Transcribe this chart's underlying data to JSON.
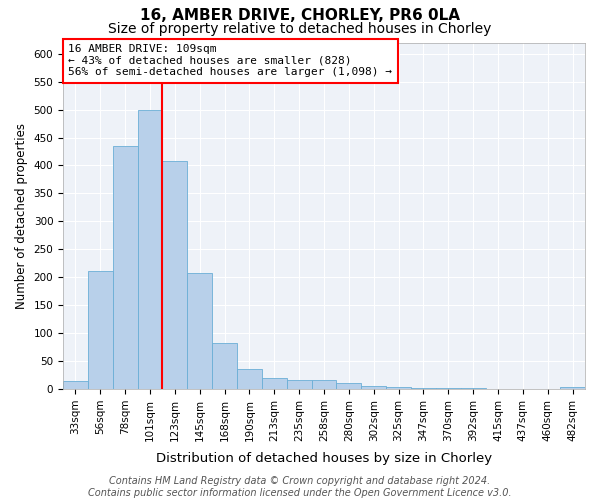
{
  "title1": "16, AMBER DRIVE, CHORLEY, PR6 0LA",
  "title2": "Size of property relative to detached houses in Chorley",
  "xlabel": "Distribution of detached houses by size in Chorley",
  "ylabel": "Number of detached properties",
  "categories": [
    "33sqm",
    "56sqm",
    "78sqm",
    "101sqm",
    "123sqm",
    "145sqm",
    "168sqm",
    "190sqm",
    "213sqm",
    "235sqm",
    "258sqm",
    "280sqm",
    "302sqm",
    "325sqm",
    "347sqm",
    "370sqm",
    "392sqm",
    "415sqm",
    "437sqm",
    "460sqm",
    "482sqm"
  ],
  "values": [
    15,
    212,
    435,
    500,
    408,
    208,
    83,
    36,
    20,
    16,
    16,
    10,
    5,
    3,
    1,
    1,
    1,
    0,
    0,
    0,
    4
  ],
  "bar_color": "#b8d0ea",
  "bar_edgecolor": "#6aaed6",
  "redline_index": 3.5,
  "ann_line1": "16 AMBER DRIVE: 109sqm",
  "ann_line2": "← 43% of detached houses are smaller (828)",
  "ann_line3": "56% of semi-detached houses are larger (1,098) →",
  "ylim": [
    0,
    620
  ],
  "yticks": [
    0,
    50,
    100,
    150,
    200,
    250,
    300,
    350,
    400,
    450,
    500,
    550,
    600
  ],
  "background_color": "#eef2f8",
  "footer_line1": "Contains HM Land Registry data © Crown copyright and database right 2024.",
  "footer_line2": "Contains public sector information licensed under the Open Government Licence v3.0.",
  "title1_fontsize": 11,
  "title2_fontsize": 10,
  "xlabel_fontsize": 9.5,
  "ylabel_fontsize": 8.5,
  "tick_fontsize": 7.5,
  "ann_fontsize": 8,
  "footer_fontsize": 7
}
